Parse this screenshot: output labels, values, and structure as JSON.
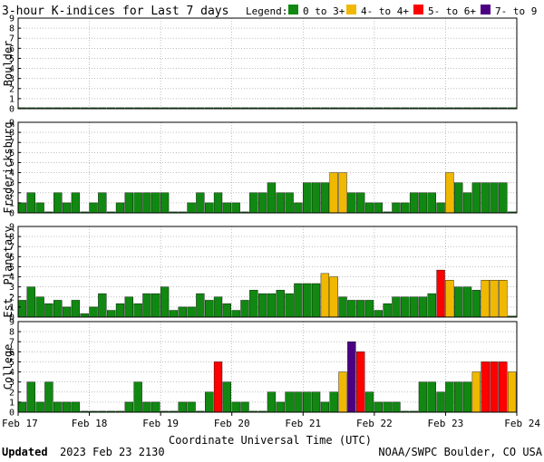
{
  "chart_data": {
    "type": "bar",
    "title": "3-hour K-indices for Last 7 days",
    "legend": {
      "label": "Legend:",
      "items": [
        {
          "label": "0 to 3+",
          "color": "#118811"
        },
        {
          "label": "4- to 4+",
          "color": "#f0b800"
        },
        {
          "label": "5- to 6+",
          "color": "#ff0000"
        },
        {
          "label": "7- to 9",
          "color": "#4b0082"
        }
      ]
    },
    "xlabel": "Coordinate Universal Time (UTC)",
    "x_ticks": [
      "Feb 17",
      "Feb 18",
      "Feb 19",
      "Feb 20",
      "Feb 21",
      "Feb 22",
      "Feb 23",
      "Feb 24"
    ],
    "y_ticks": [
      "0",
      "1",
      "2",
      "3",
      "4",
      "5",
      "6",
      "7",
      "8",
      "9"
    ],
    "ylim": [
      0,
      9
    ],
    "bins_per_day": 8,
    "panels": [
      {
        "name": "Boulder",
        "values": [
          0.1,
          0.1,
          0.1,
          0.1,
          0.1,
          0.1,
          0.1,
          0.1,
          0.1,
          0.1,
          0.1,
          0.1,
          0.1,
          0.1,
          0.1,
          0.1,
          0.1,
          0.1,
          0.1,
          0.1,
          0.1,
          0.1,
          0.1,
          0.1,
          0.1,
          0.1,
          0.1,
          0.1,
          0.1,
          0.1,
          0.1,
          0.1,
          0.1,
          0.1,
          0.1,
          0.1,
          0.1,
          0.1,
          0.1,
          0.1,
          0.1,
          0.1,
          0.1,
          0.1,
          0.1,
          0.1,
          0.1,
          0.1,
          0.1,
          0.1,
          0.1,
          0.1,
          0.1,
          0.1,
          0.1,
          0.1
        ]
      },
      {
        "name": "Fredericksburg",
        "values": [
          1,
          2,
          1,
          0,
          2,
          1,
          2,
          0,
          1,
          2,
          0,
          1,
          2,
          2,
          2,
          2,
          2,
          0,
          0,
          1,
          2,
          1,
          2,
          1,
          1,
          0,
          2,
          2,
          3,
          2,
          2,
          1,
          3,
          3,
          3,
          4,
          4,
          2,
          2,
          1,
          1,
          0,
          1,
          1,
          2,
          2,
          2,
          1,
          4,
          3,
          2,
          3,
          3,
          3,
          3,
          0
        ]
      },
      {
        "name": "Est. Planetary",
        "values": [
          1.67,
          3,
          2,
          1.33,
          1.67,
          1,
          1.67,
          0.33,
          1,
          2.33,
          0.67,
          1.33,
          2,
          1.33,
          2.33,
          2.33,
          3,
          0.67,
          1,
          1,
          2.33,
          1.67,
          2,
          1.33,
          0.67,
          1.67,
          2.67,
          2.33,
          2.33,
          2.67,
          2.33,
          3.33,
          3.33,
          3.33,
          4.33,
          4,
          2,
          1.67,
          1.67,
          1.67,
          0.67,
          1.33,
          2,
          2,
          2,
          2,
          2.33,
          4.67,
          3.67,
          3,
          3,
          2.67,
          3.67,
          3.67,
          3.67,
          0
        ]
      },
      {
        "name": "College",
        "values": [
          1,
          3,
          1,
          3,
          1,
          1,
          1,
          0,
          0,
          0,
          0,
          0,
          1,
          3,
          1,
          1,
          0,
          0,
          1,
          1,
          0,
          2,
          5,
          3,
          1,
          1,
          0,
          0,
          2,
          1,
          2,
          2,
          2,
          2,
          1,
          2,
          4,
          7,
          6,
          2,
          1,
          1,
          1,
          0,
          0,
          3,
          3,
          2,
          3,
          3,
          3,
          4,
          5,
          5,
          5,
          4
        ]
      }
    ]
  },
  "footer": {
    "updated_label": "Updated",
    "updated_value": "2023 Feb 23 2130",
    "source": "NOAA/SWPC Boulder, CO USA"
  }
}
